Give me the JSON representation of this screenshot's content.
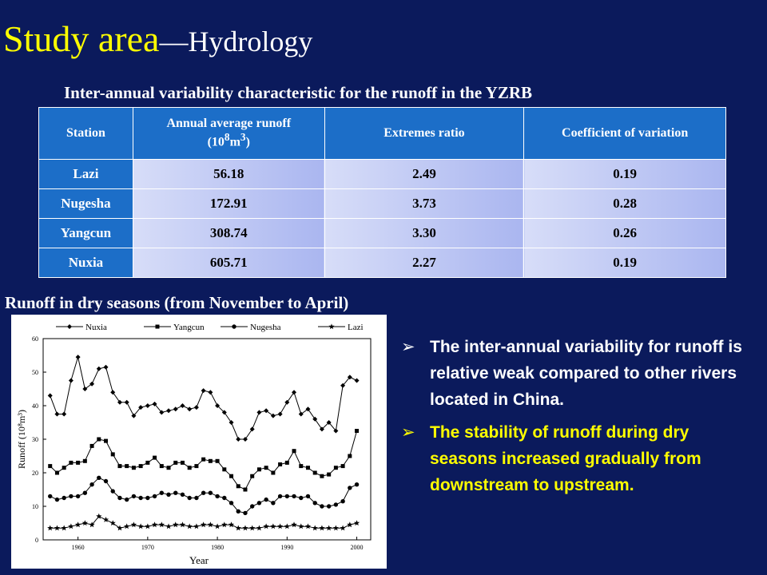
{
  "slide": {
    "title": "Study area",
    "subtitle": "—Hydrology",
    "table_caption": "Inter-annual variability characteristic for the runoff in the YZRB",
    "chart_caption": "Runoff in dry seasons (from November to April)"
  },
  "table": {
    "headers": [
      "Station",
      "Annual average runoff",
      "(10",
      "8",
      "m",
      "3",
      ")",
      "Extremes ratio",
      "Coefficient of variation"
    ],
    "rows": [
      {
        "station": "Lazi",
        "runoff": "56.18",
        "ratio": "2.49",
        "cv": "0.19"
      },
      {
        "station": "Nugesha",
        "runoff": "172.91",
        "ratio": "3.73",
        "cv": "0.28"
      },
      {
        "station": "Yangcun",
        "runoff": "308.74",
        "ratio": "3.30",
        "cv": "0.26"
      },
      {
        "station": "Nuxia",
        "runoff": "605.71",
        "ratio": "2.27",
        "cv": "0.19"
      }
    ]
  },
  "bullets": {
    "arrow": "➢",
    "items": [
      "The inter-annual variability for runoff is relative weak compared to other rivers located in China.",
      "The stability of runoff during dry seasons increased gradually from downstream to upstream."
    ]
  },
  "chart_data": {
    "type": "line",
    "xlabel": "Year",
    "ylabel": "Runoff (10⁸m³)",
    "xlim": [
      1955,
      2002
    ],
    "ylim": [
      0,
      60
    ],
    "xticks": [
      1960,
      1970,
      1980,
      1990,
      2000
    ],
    "yticks": [
      0,
      10,
      20,
      30,
      40,
      50,
      60
    ],
    "x": [
      1956,
      1957,
      1958,
      1959,
      1960,
      1961,
      1962,
      1963,
      1964,
      1965,
      1966,
      1967,
      1968,
      1969,
      1970,
      1971,
      1972,
      1973,
      1974,
      1975,
      1976,
      1977,
      1978,
      1979,
      1980,
      1981,
      1982,
      1983,
      1984,
      1985,
      1986,
      1987,
      1988,
      1989,
      1990,
      1991,
      1992,
      1993,
      1994,
      1995,
      1996,
      1997,
      1998,
      1999,
      2000
    ],
    "series": [
      {
        "name": "Nuxia",
        "marker": "diamond",
        "values": [
          43,
          37.5,
          37.5,
          47.5,
          54.5,
          45,
          46.5,
          51,
          51.5,
          44,
          41,
          41,
          37,
          39.5,
          40,
          40.5,
          38,
          38.5,
          39,
          40,
          39,
          39.5,
          44.5,
          44,
          40,
          38,
          35,
          30,
          30,
          33,
          38,
          38.5,
          37,
          37.5,
          41,
          44,
          37.5,
          39,
          36,
          33,
          35,
          32.5,
          46,
          48.5,
          47.5
        ]
      },
      {
        "name": "Yangcun",
        "marker": "square",
        "values": [
          22,
          20,
          21.5,
          23,
          23,
          23.5,
          28,
          30,
          29.5,
          25.5,
          22,
          22,
          21.5,
          22,
          23,
          24.5,
          22,
          21.5,
          23,
          23,
          21.5,
          22,
          24,
          23.5,
          23.5,
          21,
          19,
          16,
          15,
          19,
          21,
          21.5,
          20,
          22.5,
          23,
          26.5,
          22,
          21.5,
          20,
          19,
          19.5,
          21.5,
          22,
          25,
          32.5
        ]
      },
      {
        "name": "Nugesha",
        "marker": "circle",
        "values": [
          13,
          12,
          12.5,
          13,
          13,
          14,
          16.5,
          18.5,
          17.5,
          14.5,
          12.5,
          12,
          13,
          12.5,
          12.5,
          13,
          14,
          13.5,
          14,
          13.5,
          12.5,
          12.5,
          14,
          14,
          13,
          12.5,
          11,
          8.5,
          8,
          10,
          11,
          12,
          11,
          13,
          13,
          13,
          12.5,
          13,
          11,
          10,
          10,
          10.5,
          11.5,
          15.5,
          16.5
        ]
      },
      {
        "name": "Lazi",
        "marker": "star",
        "values": [
          3.5,
          3.5,
          3.5,
          4,
          4.5,
          5,
          4.5,
          7,
          6,
          5,
          3.5,
          4,
          4.5,
          4,
          4,
          4.5,
          4.5,
          4,
          4.5,
          4.5,
          4,
          4,
          4.5,
          4.5,
          4,
          4.5,
          4.5,
          3.5,
          3.5,
          3.5,
          3.5,
          4,
          4,
          4,
          4,
          4.5,
          4,
          4,
          3.5,
          3.5,
          3.5,
          3.5,
          3.5,
          4.5,
          5
        ]
      }
    ],
    "legend_position": "top"
  }
}
